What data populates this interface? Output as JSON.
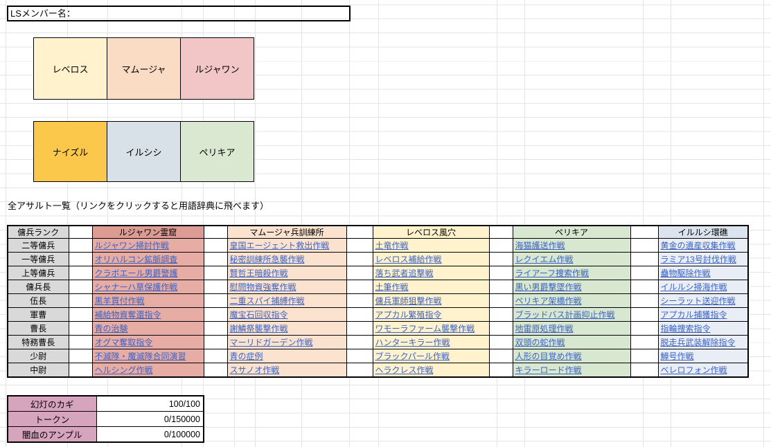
{
  "colors": {
    "gridline": "#e4e4e4",
    "cell_border": "#000000",
    "link": "#3b62c4",
    "rank_bg": "#d9d9d9",
    "spacer_bg": "#ffffff",
    "currency_label_bg": "#d7a4bd"
  },
  "ls_box": {
    "label": "LSメンバー名："
  },
  "member_boxes": {
    "row1": [
      {
        "label": "レベロス",
        "bg": "#fff2cc"
      },
      {
        "label": "マムージャ",
        "bg": "#fadcc4"
      },
      {
        "label": "ルジャワン",
        "bg": "#f2c5c7"
      }
    ],
    "row2": [
      {
        "label": "ナイズル",
        "bg": "#fbc84b"
      },
      {
        "label": "イルシシ",
        "bg": "#d8e1e8"
      },
      {
        "label": "ペリキア",
        "bg": "#dae8d2"
      }
    ]
  },
  "assault_section": {
    "title": "全アサルト一覧（リンクをクリックすると用語辞典に飛べます）",
    "rank_header": "傭兵ランク",
    "ranks": [
      "二等傭兵",
      "一等傭兵",
      "上等傭兵",
      "傭兵長",
      "伍長",
      "軍曹",
      "曹長",
      "特務曹長",
      "少尉",
      "中尉"
    ],
    "areas": [
      {
        "header": "ルジャワン霊窟",
        "header_bg": "#dc9c94",
        "cell_bg": "#e7aca3",
        "missions": [
          "ルジャワン掃討作戦",
          "オリハルコン鉱脈調査",
          "クラボエール男爵警護",
          "シャナーハ草保護作戦",
          "黒羊買付作戦",
          "補給物資奪還指令",
          "青の治験",
          "オグマ奪取指令",
          "不滅隊・魔滅隊合同演習",
          "ヘルシング作戦"
        ]
      },
      {
        "header": "マムージャ兵訓練所",
        "header_bg": "#fbe2ce",
        "cell_bg": "#fbe2ce",
        "missions": [
          "皇国エージェント救出作戦",
          "秘密訓練所急襲作戦",
          "賢哲王暗殺作戦",
          "慰問物資強奪作戦",
          "二重スパイ捕縛作戦",
          "魔宝石回収指令",
          "謝鱗祭襲撃作戦",
          "マーリドガーデン作戦",
          "青の症例",
          "スサノオ作戦"
        ]
      },
      {
        "header": "レベロス風穴",
        "header_bg": "#fff2cc",
        "cell_bg": "#fff2cc",
        "missions": [
          "土竜作戦",
          "レベロス補給作戦",
          "落ち武者追撃戦",
          "土筆作戦",
          "傭兵軍師狙撃作戦",
          "アプカル繁殖指令",
          "ワモーラファーム襲撃作戦",
          "ハンターキラー作戦",
          "ブラックパール作戦",
          "ヘラクレス作戦"
        ]
      },
      {
        "header": "ペリキア",
        "header_bg": "#d8e7d0",
        "cell_bg": "#d8e7d0",
        "missions": [
          "海猫護送作戦",
          "レクイエム作戦",
          "ライアーフ捜索作戦",
          "黒い男爵撃墜作戦",
          "ペリキア架橋作戦",
          "ブラッドバス計画抑止作戦",
          "地雷原処理作戦",
          "双頭の蛇作戦",
          "人形の目覚め作戦",
          "キラーロード作戦"
        ]
      },
      {
        "header": "イルルシ環礁",
        "header_bg": "#dae3ee",
        "cell_bg": "#e9eef6",
        "missions": [
          "黄金の遺産収集作戦",
          "ラミア13号討伐作戦",
          "蠱物駆除作戦",
          "イルルシ掃海作戦",
          "シーラット送迎作戦",
          "アプカル捕獲指令",
          "指輪捜索指令",
          "脱走兵武装解除指令",
          "鱆号作戦",
          "ベレロフォン作戦"
        ]
      }
    ]
  },
  "currency_table": {
    "rows": [
      {
        "label": "幻灯のカギ",
        "value": "100/100"
      },
      {
        "label": "トークン",
        "value": "0/150000"
      },
      {
        "label": "闇血のアンプル",
        "value": "0/100000"
      }
    ]
  }
}
